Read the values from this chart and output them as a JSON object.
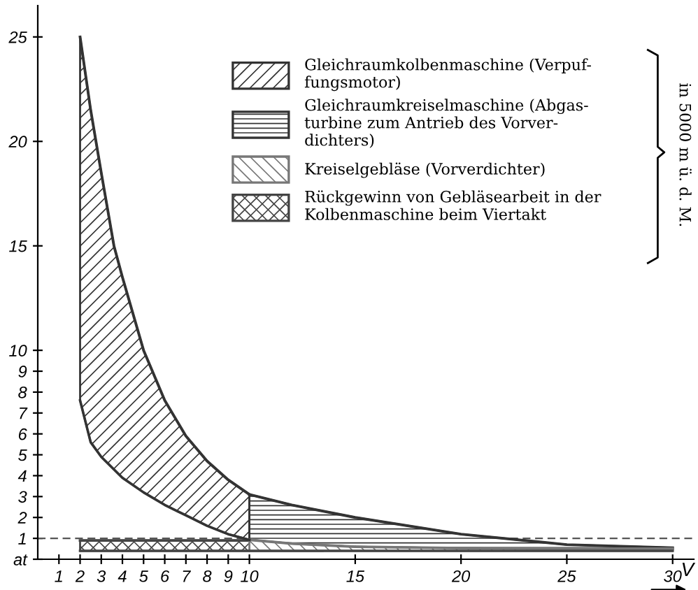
{
  "chart_data": {
    "type": "area",
    "xlabel": "V",
    "xlim": [
      0,
      31
    ],
    "ylim": [
      0,
      26.5
    ],
    "xticks": [
      1,
      2,
      3,
      4,
      5,
      6,
      7,
      8,
      9,
      10,
      15,
      20,
      25,
      30
    ],
    "yticks": [
      {
        "value": 0,
        "label": "at"
      },
      1,
      2,
      3,
      4,
      5,
      6,
      7,
      8,
      9,
      10,
      15,
      20,
      25
    ],
    "series": [
      {
        "type": "line",
        "color": "#333333",
        "x": [
          2,
          2.5,
          3,
          3.6,
          4,
          5,
          6,
          7,
          8,
          9,
          10
        ],
        "values": [
          7.6,
          5.6,
          4.9,
          4.3,
          3.9,
          3.2,
          2.6,
          2.1,
          1.6,
          1.2,
          0.93
        ]
      },
      {
        "name": "Gleichraumkolbenmaschine (Verpuf-\nfungsmotor)",
        "color": "#333333",
        "x": [
          2,
          2.5,
          3,
          3.6,
          4,
          5,
          6,
          7,
          8,
          9,
          10
        ],
        "values": [
          25,
          21.5,
          18.5,
          15,
          13.5,
          10,
          7.6,
          5.9,
          4.7,
          3.8,
          3.1
        ]
      },
      {
        "name": "Gleichraumkreiselmaschine (Abgas-\nturbine zum Antrieb des Vorver-\ndichters)",
        "color": "#333333",
        "x": [
          10,
          12,
          15,
          20,
          25,
          30
        ],
        "values": [
          3.1,
          2.6,
          2.0,
          1.2,
          0.7,
          0.55
        ]
      },
      {
        "type": "line",
        "color": "#444444",
        "x": [
          2,
          30
        ],
        "values": [
          0.4,
          0.4
        ]
      },
      {
        "name": "Kreiselgebläse (Vorverdichter)",
        "color": "#777777",
        "x": [
          10,
          12,
          15,
          20,
          25,
          30
        ],
        "values": [
          0.93,
          0.75,
          0.6,
          0.53,
          0.5,
          0.5
        ]
      },
      {
        "name": "Rückgewinn von Gebläsearbeit in der\nKolbenmaschine beim Viertakt",
        "color": "#444444",
        "x": [
          2,
          10,
          13.5
        ],
        "values": [
          0.9,
          0.9,
          0.45
        ]
      }
    ],
    "ref_lines": [
      {
        "axis": "y",
        "value": 1,
        "line_style": "dashed",
        "color": "#555555"
      }
    ],
    "legend": "top right",
    "annotations": [
      "in 5000 m ü. d. M."
    ]
  }
}
